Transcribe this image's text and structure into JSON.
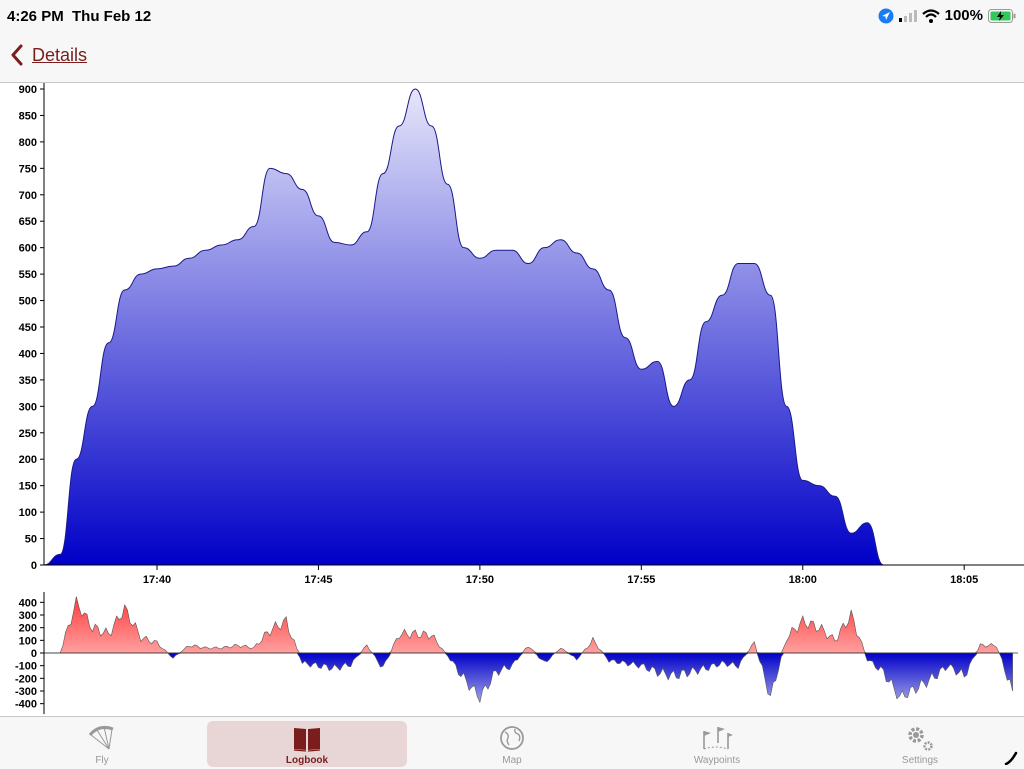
{
  "status": {
    "time": "4:26 PM",
    "date": "Thu Feb 12",
    "battery": "100%"
  },
  "nav": {
    "back_label": "Details"
  },
  "tabs": [
    {
      "label": "Fly",
      "icon": "paraglider-icon",
      "active": false
    },
    {
      "label": "Logbook",
      "icon": "book-icon",
      "active": true
    },
    {
      "label": "Map",
      "icon": "globe-icon",
      "active": false
    },
    {
      "label": "Waypoints",
      "icon": "flags-icon",
      "active": false
    },
    {
      "label": "Settings",
      "icon": "gear-icon",
      "active": false
    }
  ],
  "colors": {
    "accent": "#7a1d1d",
    "altitude_fill_top": "#e6e6fa",
    "altitude_fill_bottom": "#0000c8",
    "climb": "#ff4d4d",
    "sink": "#0000c8"
  },
  "chart_data": [
    {
      "type": "area",
      "x_tick_labels": [
        "17:40",
        "17:45",
        "17:50",
        "17:55",
        "18:00",
        "18:05"
      ],
      "y_tick_labels": [
        "900",
        "850",
        "800",
        "750",
        "700",
        "650",
        "600",
        "550",
        "500",
        "450",
        "400",
        "350",
        "300",
        "250",
        "200",
        "150",
        "100",
        "50",
        "0"
      ],
      "ylim": [
        0,
        900
      ],
      "xlim": [
        "17:36:30",
        "18:06:40"
      ],
      "x_unit": "time",
      "grid": false,
      "legend": "none",
      "series": [
        {
          "x": [
            "17:36:30",
            "17:37:00",
            "17:37:30",
            "17:38:00",
            "17:38:30",
            "17:39:00",
            "17:39:30",
            "17:40:00",
            "17:40:30",
            "17:41:00",
            "17:41:30",
            "17:42:00",
            "17:42:30",
            "17:43:00",
            "17:43:30",
            "17:44:00",
            "17:44:30",
            "17:45:00",
            "17:45:30",
            "17:46:00",
            "17:46:30",
            "17:47:00",
            "17:47:30",
            "17:48:00",
            "17:48:30",
            "17:49:00",
            "17:49:30",
            "17:50:00",
            "17:50:30",
            "17:51:00",
            "17:51:30",
            "17:52:00",
            "17:52:30",
            "17:53:00",
            "17:53:30",
            "17:54:00",
            "17:54:30",
            "17:55:00",
            "17:55:30",
            "17:56:00",
            "17:56:30",
            "17:57:00",
            "17:57:30",
            "17:58:00",
            "17:58:30",
            "17:59:00",
            "17:59:30",
            "18:00:00",
            "18:00:30",
            "18:01:00",
            "18:01:30",
            "18:02:00",
            "18:02:30",
            "18:03:00",
            "18:03:30",
            "18:04:00",
            "18:04:30",
            "18:05:00",
            "18:05:30",
            "18:06:00",
            "18:06:30",
            "18:06:40"
          ],
          "values": [
            0,
            20,
            200,
            300,
            420,
            520,
            550,
            560,
            565,
            580,
            595,
            605,
            615,
            640,
            750,
            740,
            710,
            660,
            610,
            605,
            630,
            740,
            830,
            900,
            830,
            720,
            600,
            580,
            595,
            595,
            570,
            600,
            615,
            590,
            560,
            520,
            430,
            370,
            385,
            300,
            350,
            460,
            510,
            570,
            570,
            510,
            300,
            160,
            150,
            130,
            60,
            80,
            0,
            0,
            0,
            0,
            0,
            0,
            0,
            0,
            0,
            0
          ]
        }
      ]
    },
    {
      "type": "area",
      "x_tick_labels": [],
      "y_tick_labels": [
        "400",
        "300",
        "200",
        "100",
        "0",
        "-100",
        "-200",
        "-300",
        "-400"
      ],
      "ylim": [
        -450,
        450
      ],
      "xlim": [
        "17:36:30",
        "18:06:40"
      ],
      "grid": false,
      "legend": "none",
      "series": [
        {
          "x": [
            "17:36:30",
            "17:37:00",
            "17:37:30",
            "17:38:00",
            "17:38:30",
            "17:39:00",
            "17:39:30",
            "17:40:00",
            "17:40:30",
            "17:41:00",
            "17:41:30",
            "17:42:00",
            "17:42:30",
            "17:43:00",
            "17:43:30",
            "17:44:00",
            "17:44:30",
            "17:45:00",
            "17:45:30",
            "17:46:00",
            "17:46:30",
            "17:47:00",
            "17:47:30",
            "17:48:00",
            "17:48:30",
            "17:49:00",
            "17:49:30",
            "17:50:00",
            "17:50:30",
            "17:51:00",
            "17:51:30",
            "17:52:00",
            "17:52:30",
            "17:53:00",
            "17:53:30",
            "17:54:00",
            "17:54:30",
            "17:55:00",
            "17:55:30",
            "17:56:00",
            "17:56:30",
            "17:57:00",
            "17:57:30",
            "17:58:00",
            "17:58:30",
            "17:59:00",
            "17:59:30",
            "18:00:00",
            "18:00:30",
            "18:01:00",
            "18:01:30",
            "18:02:00",
            "18:02:30",
            "18:03:00",
            "18:03:30",
            "18:04:00",
            "18:04:30",
            "18:05:00",
            "18:05:30",
            "18:06:00",
            "18:06:30"
          ],
          "values": [
            0,
            0,
            400,
            200,
            150,
            350,
            120,
            80,
            -40,
            60,
            40,
            40,
            60,
            40,
            180,
            250,
            -80,
            -100,
            -120,
            -90,
            60,
            -120,
            150,
            150,
            140,
            -20,
            -200,
            -350,
            -150,
            -100,
            60,
            -80,
            40,
            -50,
            100,
            -60,
            -80,
            -100,
            -150,
            -180,
            -150,
            -120,
            -80,
            -100,
            80,
            -350,
            120,
            250,
            200,
            100,
            300,
            -50,
            -150,
            -350,
            -280,
            -200,
            -100,
            -180,
            60,
            60,
            -300
          ]
        }
      ]
    }
  ]
}
